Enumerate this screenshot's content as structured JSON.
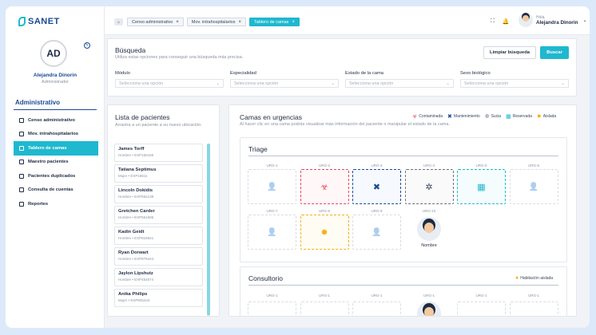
{
  "brand": "SANET",
  "profile": {
    "initials": "AD",
    "name": "Alejandra Dinorin",
    "role": "Administrador"
  },
  "sidebar": {
    "section": "Administrativo",
    "items": [
      {
        "label": "Censo administrativo",
        "icon": "clipboard-icon",
        "active": false
      },
      {
        "label": "Mov. intrahospitalarios",
        "icon": "transfer-icon",
        "active": false
      },
      {
        "label": "Tablero de camas",
        "icon": "bed-icon",
        "active": true
      },
      {
        "label": "Maestro pacientes",
        "icon": "file-icon",
        "active": false
      },
      {
        "label": "Pacientes duplicados",
        "icon": "users-icon",
        "active": false
      },
      {
        "label": "Consulta de cuentas",
        "icon": "receipt-icon",
        "active": false
      },
      {
        "label": "Reportes",
        "icon": "report-icon",
        "active": false
      }
    ]
  },
  "topbar": {
    "tabs": [
      {
        "label": "Censo administrativo",
        "active": false
      },
      {
        "label": "Mov. intrahospitalarios",
        "active": false
      },
      {
        "label": "Tablero de camas",
        "active": true
      }
    ],
    "greeting": "Hola,",
    "user_name": "Alejandra Dinorin"
  },
  "search": {
    "title": "Búsqueda",
    "subtitle": "Utiliza estas opciones para conseguir una búsqueda más precisa.",
    "clear_label": "Limpiar búsqueda",
    "search_label": "Buscar",
    "filters": [
      {
        "label": "Módulo",
        "placeholder": "Selecciona una opción"
      },
      {
        "label": "Especialidad",
        "placeholder": "Selecciona una opción"
      },
      {
        "label": "Estado de la cama",
        "placeholder": "Selecciona una opción"
      },
      {
        "label": "Sexo biológico",
        "placeholder": "Selecciona una opción"
      }
    ]
  },
  "patients": {
    "title": "Lista de pacientes",
    "subtitle": "Arrastra a un paciente a su nuevo ubicación.",
    "items": [
      {
        "name": "James Torff",
        "info": "Hombre • EXP156156"
      },
      {
        "name": "Tatiana Septimus",
        "info": "Mujer • EXP18611"
      },
      {
        "name": "Lincoln Dokidis",
        "info": "Hombre • EXP554138"
      },
      {
        "name": "Gretchen Carder",
        "info": "Hombre • EXP561506"
      },
      {
        "name": "Kadin Geidt",
        "info": "Hombre • EXP815641"
      },
      {
        "name": "Ryan Dorwart",
        "info": "Hombre • EXP878444"
      },
      {
        "name": "Jaylon Lipshutz",
        "info": "Hombre • EXP454574"
      },
      {
        "name": "Anika Philips",
        "info": "Mujer • EXP925444"
      }
    ]
  },
  "beds": {
    "title": "Camas en urgencias",
    "subtitle": "Al hacer clic en una cama podrás visualizar más información del paciente o manipular el estado de la cama.",
    "legend": [
      {
        "label": "Contaminada",
        "color": "#e5475a",
        "icon": "biohazard-icon",
        "glyph": "☣"
      },
      {
        "label": "Mantenimiento",
        "color": "#1b4a93",
        "icon": "tools-icon",
        "glyph": "✖"
      },
      {
        "label": "Sucia",
        "color": "#6b7280",
        "icon": "dirt-icon",
        "glyph": "✲"
      },
      {
        "label": "Reservada",
        "color": "#1fb8cf",
        "icon": "calendar-icon",
        "glyph": "▦"
      },
      {
        "label": "Aislada",
        "color": "#f2b01e",
        "icon": "virus-icon",
        "glyph": "✹"
      }
    ],
    "triage": {
      "title": "Triage",
      "beds": [
        {
          "label": "URG-1",
          "state": "empty"
        },
        {
          "label": "URG-2",
          "state": "cont"
        },
        {
          "label": "URG-3",
          "state": "mant"
        },
        {
          "label": "URG-4",
          "state": "sucia"
        },
        {
          "label": "URG-5",
          "state": "res"
        },
        {
          "label": "URG-6",
          "state": "empty"
        },
        {
          "label": "URG-7",
          "state": "empty"
        },
        {
          "label": "URG-8",
          "state": "ais"
        },
        {
          "label": "URG-9",
          "state": "empty"
        },
        {
          "label": "URG-10",
          "state": "occ",
          "patient": "Nombre"
        }
      ]
    },
    "consult": {
      "title": "Consultorio",
      "tag": "Habitación aislada",
      "beds": [
        {
          "label": "URG-1",
          "state": "empty"
        },
        {
          "label": "URG-1",
          "state": "empty"
        },
        {
          "label": "URG-1",
          "state": "empty"
        },
        {
          "label": "URG-1",
          "state": "occ"
        },
        {
          "label": "URG-1",
          "state": "empty"
        },
        {
          "label": "URG-1",
          "state": "empty"
        }
      ]
    }
  }
}
